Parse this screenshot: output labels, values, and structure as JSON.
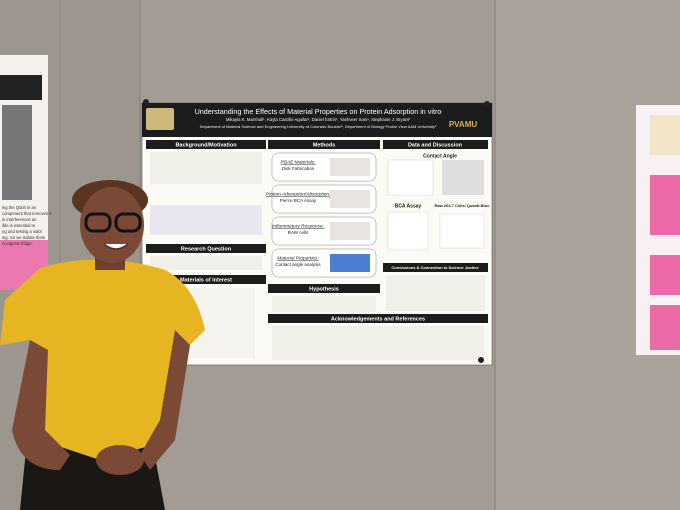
{
  "poster": {
    "title": "Understanding the Effects of Material Properties on Protein Adsorption in vitro",
    "authors": "Mikayla K. Marshall¹, Kayla Castillo-Aguilar², Daniel Estrin¹, Yashveer Soni¹, Stephanie J. Bryant¹",
    "affiliation": "Department of Material Science and Engineering University of Colorado Boulder¹, Department of Biology Prairie View A&M University²",
    "logo_right": "PVAMU",
    "sections": {
      "background": "Background/Motivation",
      "methods": "Methods",
      "data": "Data and Discussion",
      "question": "Research Question",
      "materials": "Materials of Interest",
      "hypothesis": "Hypothesis",
      "conclusions": "Conclusions & Connection to Science Justice",
      "acknowledgements": "Acknowledgements and References"
    },
    "methods": [
      {
        "title": "PBAE Materials:",
        "detail": "Disk Fabrication"
      },
      {
        "title": "Protein Adsorption/Absorption:",
        "detail": "Pierce BCA Assay"
      },
      {
        "title": "Inflammatory Response:",
        "detail": "RAW cells"
      },
      {
        "title": "Material Properties:",
        "detail": "Contact angle analysis"
      }
    ],
    "data_labels": [
      "Contact Angle",
      "BCA Assay",
      "Raw 264.7 Cells/ Quanti-Blue"
    ]
  },
  "side_poster_left": {
    "lines": [
      "ing the Qubit in an",
      "component that removes s",
      "in interferences an",
      "ible is essential to",
      "ng and testing a viabl",
      "ing. So we isolate them",
      "cryogenic fridge."
    ]
  }
}
